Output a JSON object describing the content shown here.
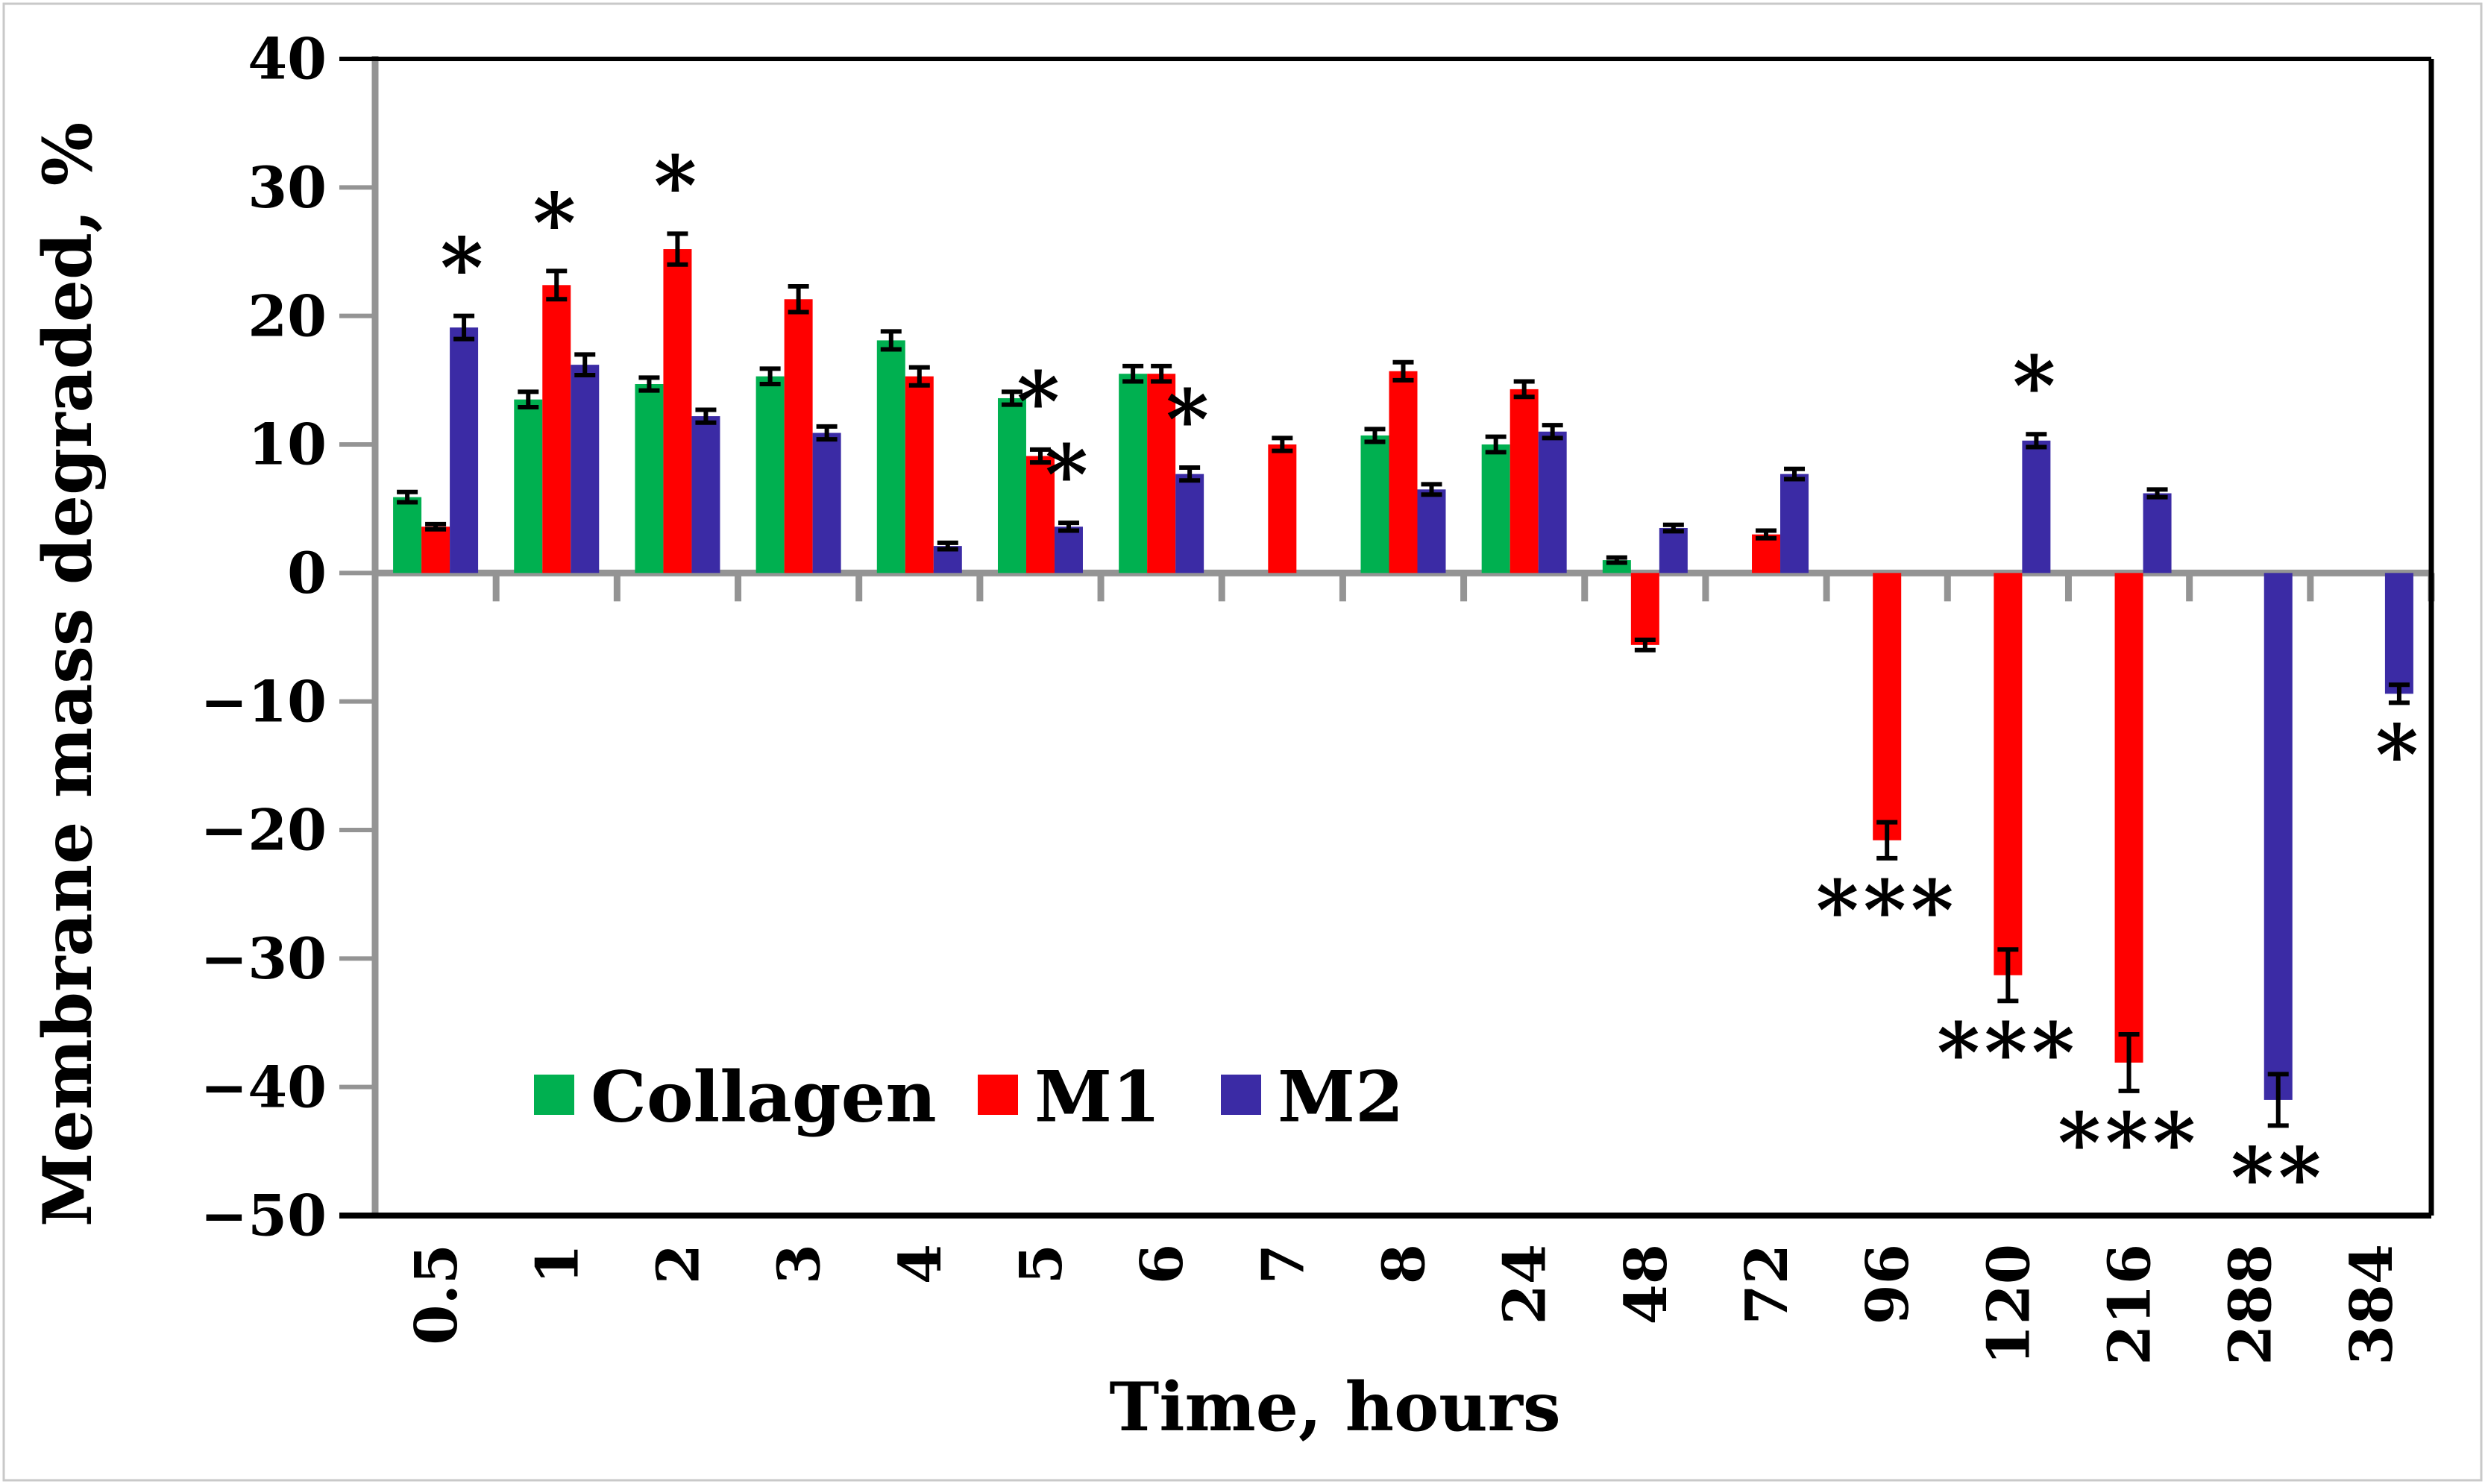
{
  "chart_data": {
    "type": "bar",
    "title": "",
    "ylabel": "Membrane mass degraded, %",
    "xlabel": "Time, hours",
    "ylim": [
      -50,
      40
    ],
    "grid": "off",
    "legend_position": "inside-bottom-left",
    "yticks": [
      {
        "value": 40,
        "label": "40"
      },
      {
        "value": 30,
        "label": "30"
      },
      {
        "value": 20,
        "label": "20"
      },
      {
        "value": 10,
        "label": "10"
      },
      {
        "value": 0,
        "label": "0"
      },
      {
        "value": -10,
        "label": "−10"
      },
      {
        "value": -20,
        "label": "−20"
      },
      {
        "value": -30,
        "label": "−30"
      },
      {
        "value": -40,
        "label": "−40"
      },
      {
        "value": -50,
        "label": "−50"
      }
    ],
    "categories": [
      "0.5",
      "1",
      "2",
      "3",
      "4",
      "5",
      "6",
      "7",
      "8",
      "24",
      "48",
      "72",
      "96",
      "120",
      "216",
      "288",
      "384"
    ],
    "series": [
      {
        "name": "Collagen",
        "color": "#00B050",
        "values": [
          5.9,
          13.5,
          14.7,
          15.3,
          18.1,
          13.6,
          15.5,
          null,
          10.7,
          10.0,
          1.0,
          null,
          null,
          null,
          null,
          null,
          null
        ],
        "errors": [
          0.4,
          0.6,
          0.5,
          0.6,
          0.7,
          0.5,
          0.6,
          null,
          0.5,
          0.6,
          0.2,
          null,
          null,
          null,
          null,
          null,
          null
        ]
      },
      {
        "name": "M1",
        "color": "#FF0000",
        "values": [
          3.6,
          22.4,
          25.2,
          21.3,
          15.3,
          9.1,
          15.5,
          10.0,
          15.7,
          14.3,
          -5.6,
          3.0,
          -20.8,
          -31.3,
          -38.1,
          null,
          null
        ],
        "errors": [
          0.2,
          1.1,
          1.2,
          1.0,
          0.7,
          0.5,
          0.6,
          0.5,
          0.7,
          0.6,
          0.4,
          0.3,
          1.4,
          2.0,
          2.2,
          null,
          null
        ]
      },
      {
        "name": "M2",
        "color": "#3B2BA5",
        "values": [
          19.1,
          16.2,
          12.2,
          10.9,
          2.1,
          3.6,
          7.7,
          null,
          6.5,
          11.0,
          3.5,
          7.7,
          null,
          10.3,
          6.2,
          -41.0,
          -9.4
        ],
        "errors": [
          0.9,
          0.8,
          0.5,
          0.5,
          0.25,
          0.3,
          0.5,
          null,
          0.4,
          0.5,
          0.25,
          0.4,
          null,
          0.5,
          0.3,
          2.0,
          0.7
        ]
      }
    ],
    "significance_markers": [
      {
        "category": "0.5",
        "series": "M2",
        "label": "*",
        "position": "above"
      },
      {
        "category": "1",
        "series": "M1",
        "label": "*",
        "position": "above"
      },
      {
        "category": "2",
        "series": "M1",
        "label": "*",
        "position": "above"
      },
      {
        "category": "5",
        "series": "M1",
        "label": "*",
        "position": "above"
      },
      {
        "category": "5",
        "series": "M2",
        "label": "*",
        "position": "above"
      },
      {
        "category": "6",
        "series": "M2",
        "label": "*",
        "position": "above"
      },
      {
        "category": "96",
        "series": "M1",
        "label": "***",
        "position": "below"
      },
      {
        "category": "120",
        "series": "M2",
        "label": "*",
        "position": "above"
      },
      {
        "category": "120",
        "series": "M1",
        "label": "***",
        "position": "below"
      },
      {
        "category": "216",
        "series": "M1",
        "label": "***",
        "position": "below"
      },
      {
        "category": "288",
        "series": "M2",
        "label": "**",
        "position": "below"
      },
      {
        "category": "384",
        "series": "M2",
        "label": "*",
        "position": "below"
      }
    ],
    "legend": [
      {
        "label": "Collagen",
        "color": "#00B050"
      },
      {
        "label": "M1",
        "color": "#FF0000"
      },
      {
        "label": "M2",
        "color": "#3B2BA5"
      }
    ],
    "colors": {
      "axis_gray": "#949494",
      "plot_border_black": "#000000",
      "frame_gray": "#C9C9C9",
      "background": "#FFFFFF"
    }
  }
}
